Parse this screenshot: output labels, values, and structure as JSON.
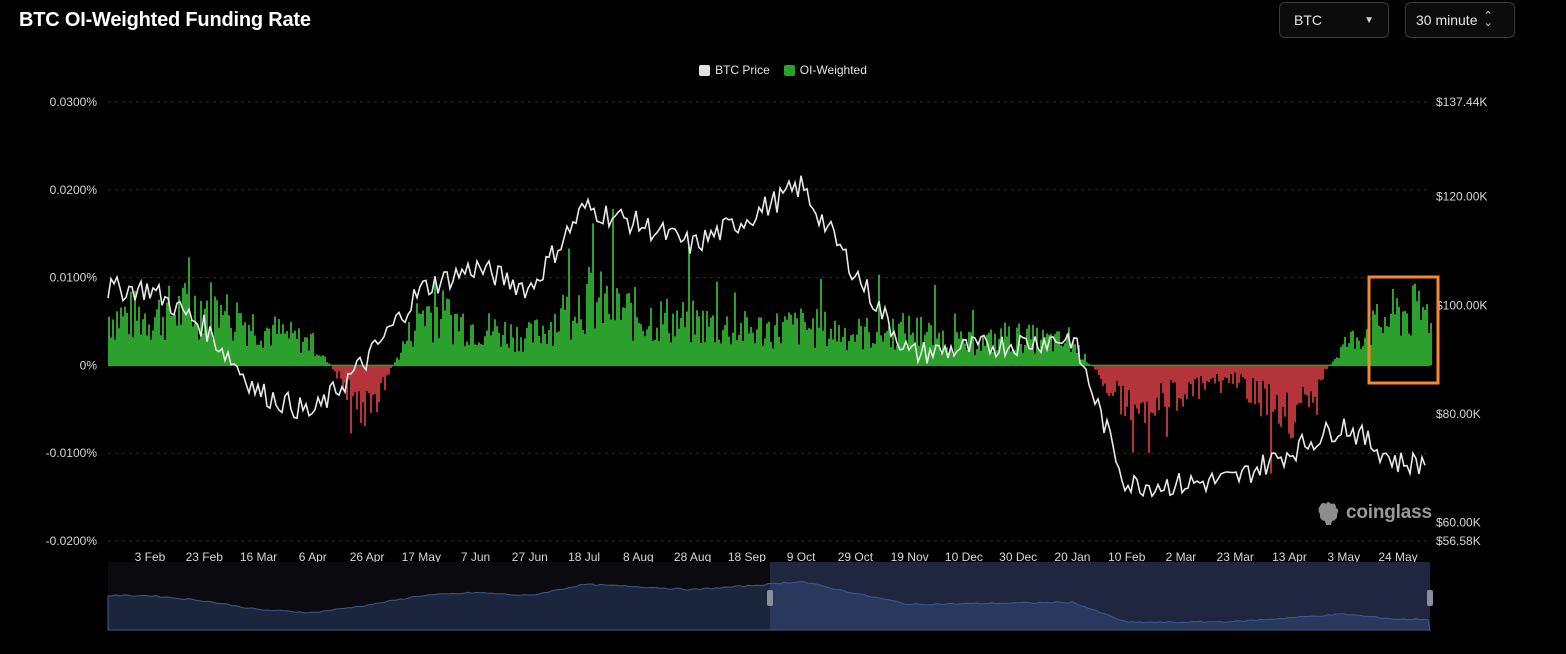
{
  "header": {
    "title": "BTC OI-Weighted Funding Rate"
  },
  "controls": {
    "asset_select": {
      "value": "BTC",
      "icon": "chevron-down-icon"
    },
    "interval_select": {
      "value": "30 minute",
      "icon": "up-down-chevron-icon"
    }
  },
  "watermark": {
    "text": "coinglass",
    "icon": "coinglass-logo-icon"
  },
  "colors": {
    "background": "#000000",
    "positive": "#2ca02c",
    "negative": "#b3343a",
    "price_line": "#e8e8e8",
    "highlight_box": "#f7892d",
    "navigator_line": "#3d5a91",
    "navigator_window": "#1f2740"
  },
  "chart_data": {
    "type": "area",
    "title": "BTC OI-Weighted Funding Rate",
    "legend": [
      "BTC Price",
      "OI-Weighted"
    ],
    "legend_placement": "top-center",
    "grid": true,
    "x_tick_labels": [
      "3 Feb",
      "23 Feb",
      "16 Mar",
      "6 Apr",
      "26 Apr",
      "17 May",
      "7 Jun",
      "27 Jun",
      "18 Jul",
      "8 Aug",
      "28 Aug",
      "18 Sep",
      "9 Oct",
      "29 Oct",
      "19 Nov",
      "10 Dec",
      "30 Dec",
      "20 Jan",
      "10 Feb",
      "2 Mar",
      "23 Mar",
      "13 Apr",
      "3 May",
      "24 May"
    ],
    "y_left": {
      "label": "",
      "ticks": [
        "0.0300%",
        "0.0200%",
        "0.0100%",
        "0%",
        "-0.0100%",
        "-0.0200%"
      ],
      "range": [
        -0.02,
        0.03
      ],
      "unit": "%"
    },
    "y_right": {
      "label": "",
      "ticks": [
        "$137.44K",
        "$120.00K",
        "$100.00K",
        "$80.00K",
        "$60.00K",
        "$56.58K"
      ],
      "range": [
        56.58,
        137.44
      ],
      "unit": "$K"
    },
    "series": [
      {
        "name": "OI-Weighted",
        "axis": "left",
        "x": [
          "3 Feb",
          "23 Feb",
          "16 Mar",
          "6 Apr",
          "26 Apr",
          "17 May",
          "7 Jun",
          "27 Jun",
          "18 Jul",
          "8 Aug",
          "28 Aug",
          "18 Sep",
          "9 Oct",
          "29 Oct",
          "19 Nov",
          "10 Dec",
          "30 Dec",
          "20 Jan",
          "10 Feb",
          "2 Mar",
          "23 Mar",
          "13 Apr",
          "3 May",
          "24 May"
        ],
        "values": [
          0.007,
          0.0085,
          0.0055,
          0.003,
          -0.007,
          0.008,
          0.0055,
          0.004,
          0.0095,
          0.007,
          0.006,
          0.005,
          0.0055,
          0.0045,
          0.005,
          0.003,
          0.004,
          0.003,
          -0.006,
          -0.004,
          -0.002,
          -0.008,
          0.003,
          0.0075
        ]
      },
      {
        "name": "BTC Price",
        "axis": "right",
        "x": [
          "3 Feb",
          "23 Feb",
          "16 Mar",
          "6 Apr",
          "26 Apr",
          "17 May",
          "7 Jun",
          "27 Jun",
          "18 Jul",
          "8 Aug",
          "28 Aug",
          "18 Sep",
          "9 Oct",
          "29 Oct",
          "19 Nov",
          "10 Dec",
          "30 Dec",
          "20 Jan",
          "10 Feb",
          "2 Mar",
          "23 Mar",
          "13 Apr",
          "3 May",
          "24 May"
        ],
        "values": [
          103,
          96,
          84,
          80,
          90,
          103,
          107,
          103,
          118,
          115,
          111,
          116,
          122,
          106,
          91,
          92,
          93,
          94,
          67,
          67,
          68,
          73,
          78,
          71
        ]
      }
    ]
  }
}
